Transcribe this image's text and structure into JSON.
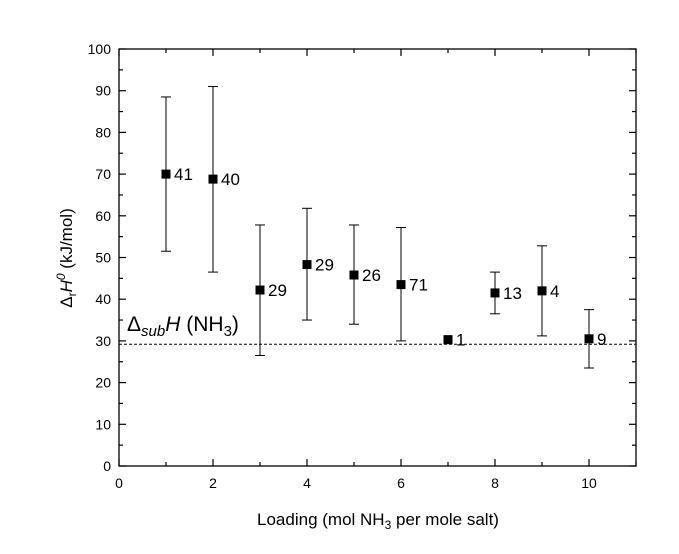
{
  "chart_data": {
    "type": "scatter",
    "title": "",
    "xlabel": {
      "main": "Loading (mol NH",
      "sub": "3",
      "rest": " per mole salt)"
    },
    "ylabel": {
      "delta": "Δ",
      "sub": "r",
      "var": "H",
      "sup": "0",
      "unit": " (kJ/mol)"
    },
    "xlim": [
      0,
      11
    ],
    "ylim": [
      0,
      100
    ],
    "xticks": [
      0,
      2,
      4,
      6,
      8,
      10
    ],
    "xtick_labels": [
      "0",
      "2",
      "4",
      "6",
      "8",
      "10"
    ],
    "yticks": [
      0,
      10,
      20,
      30,
      40,
      50,
      60,
      70,
      80,
      90,
      100
    ],
    "ytick_labels": [
      "0",
      "10",
      "20",
      "30",
      "40",
      "50",
      "60",
      "70",
      "80",
      "90",
      "100"
    ],
    "grid": false,
    "series": [
      {
        "name": "Delta_r H0",
        "points": [
          {
            "x": 1,
            "y": 70.0,
            "err_low": 51.5,
            "err_high": 88.5,
            "label": "41"
          },
          {
            "x": 2,
            "y": 68.8,
            "err_low": 46.5,
            "err_high": 91.0,
            "label": "40"
          },
          {
            "x": 3,
            "y": 42.2,
            "err_low": 26.5,
            "err_high": 57.8,
            "label": "29"
          },
          {
            "x": 4,
            "y": 48.3,
            "err_low": 35.0,
            "err_high": 61.8,
            "label": "29"
          },
          {
            "x": 5,
            "y": 45.8,
            "err_low": 34.0,
            "err_high": 57.8,
            "label": "26"
          },
          {
            "x": 6,
            "y": 43.5,
            "err_low": 30.0,
            "err_high": 57.2,
            "label": "71"
          },
          {
            "x": 7,
            "y": 30.3,
            "err_low": null,
            "err_high": null,
            "label": "1"
          },
          {
            "x": 8,
            "y": 41.5,
            "err_low": 36.5,
            "err_high": 46.5,
            "label": "13"
          },
          {
            "x": 9,
            "y": 42.0,
            "err_low": 31.2,
            "err_high": 52.8,
            "label": "4"
          },
          {
            "x": 10,
            "y": 30.5,
            "err_low": 23.5,
            "err_high": 37.5,
            "label": "9"
          }
        ]
      }
    ],
    "reference_line": {
      "y": 29.2,
      "style": "dashed"
    },
    "annotation": {
      "delta": "Δ",
      "sub": "sub",
      "var": "H",
      "text": " (NH",
      "sub2": "3",
      "close": ")"
    }
  }
}
